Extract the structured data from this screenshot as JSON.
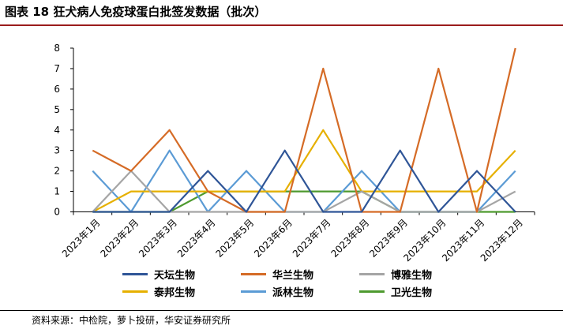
{
  "header": {
    "title": "图表 18 狂犬病人免疫球蛋白批签发数据（批次）"
  },
  "source": {
    "text": "资料来源：中检院，萝卜投研，华安证券研究所"
  },
  "chart_data": {
    "type": "line",
    "title": "图表 18 狂犬病人免疫球蛋白批签发数据（批次）",
    "xlabel": "",
    "ylabel": "",
    "ylim": [
      0,
      8
    ],
    "yticks": [
      "0",
      "1",
      "2",
      "3",
      "4",
      "5",
      "6",
      "7",
      "8"
    ],
    "categories": [
      "2023年1月",
      "2023年2月",
      "2023年3月",
      "2023年4月",
      "2023年5月",
      "2023年6月",
      "2023年7月",
      "2023年8月",
      "2023年9月",
      "2023年10月",
      "2023年11月",
      "2023年12月"
    ],
    "grid": false,
    "legend_position": "bottom",
    "series": [
      {
        "name": "天坛生物",
        "color": "#2f5597",
        "values": [
          0,
          0,
          0,
          2,
          0,
          3,
          0,
          0,
          3,
          0,
          2,
          0
        ]
      },
      {
        "name": "华兰生物",
        "color": "#d56b26",
        "values": [
          3,
          2,
          4,
          1,
          0,
          0,
          7,
          0,
          0,
          7,
          0,
          8
        ]
      },
      {
        "name": "博雅生物",
        "color": "#a5a5a5",
        "values": [
          0,
          2,
          0,
          0,
          0,
          0,
          0,
          1,
          0,
          0,
          0,
          1
        ]
      },
      {
        "name": "泰邦生物",
        "color": "#e6b000",
        "values": [
          0,
          1,
          1,
          1,
          1,
          1,
          4,
          1,
          1,
          1,
          1,
          3
        ]
      },
      {
        "name": "派林生物",
        "color": "#5b9bd5",
        "values": [
          2,
          0,
          3,
          0,
          2,
          0,
          0,
          2,
          0,
          0,
          0,
          2
        ]
      },
      {
        "name": "卫光生物",
        "color": "#4e9a2f",
        "values": [
          0,
          0,
          0,
          1,
          1,
          1,
          1,
          1,
          0,
          0,
          0,
          0
        ]
      }
    ]
  }
}
